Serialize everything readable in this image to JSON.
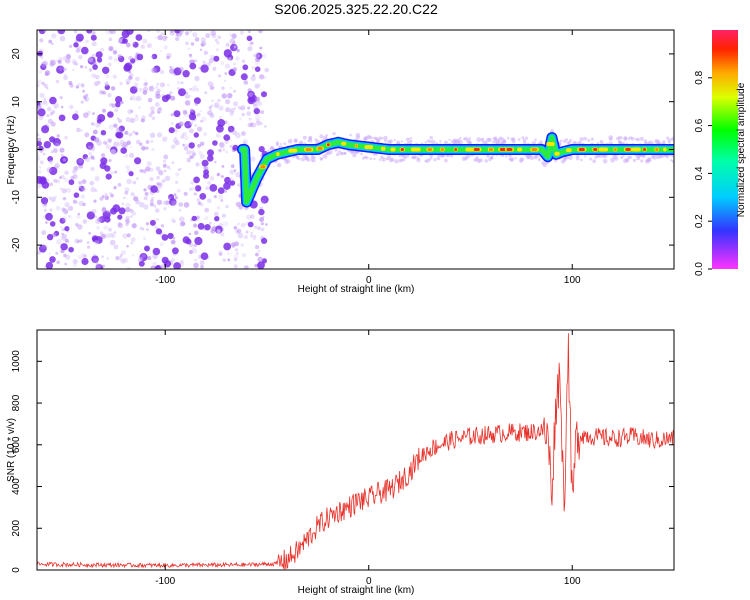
{
  "title": "S206.2025.325.22.20.C22",
  "colors": {
    "axis": "#000000",
    "snr_line": "#e8312a",
    "noise_dots": "#8a3cf0",
    "colormap": [
      "#ff0000",
      "#ff8800",
      "#ffff00",
      "#00ff00",
      "#00ffff",
      "#0000ff",
      "#ff00ff"
    ]
  },
  "chart_data": [
    {
      "type": "heatmap",
      "title": "S206.2025.325.22.20.C22",
      "xlabel": "Height of straight line (km)",
      "ylabel": "Frequency (Hz)",
      "xlim": [
        -163,
        150
      ],
      "ylim": [
        -25,
        25
      ],
      "xticks": [
        -100,
        0,
        100
      ],
      "yticks": [
        -20,
        -10,
        0,
        10,
        20
      ],
      "colorbar": {
        "label": "Normalized spectral amplitude",
        "range": [
          0,
          1
        ],
        "ticks": [
          "0.0",
          "0.2",
          "0.4",
          "0.6",
          "0.8"
        ],
        "tick_values": [
          0.0,
          0.2,
          0.4,
          0.6,
          0.8
        ]
      },
      "noise_region": {
        "x_range": [
          -163,
          -52
        ],
        "freq_range": [
          -25,
          25
        ],
        "amplitude": "low (purple)"
      },
      "ridge": {
        "x": [
          -60,
          -55,
          -50,
          -45,
          -40,
          -35,
          -30,
          -25,
          -20,
          -15,
          -10,
          0,
          10,
          20,
          30,
          40,
          50,
          60,
          70,
          80,
          85,
          88,
          90,
          92,
          95,
          100,
          110,
          120,
          130,
          140,
          150
        ],
        "freq": [
          -11,
          -6,
          -2,
          -1,
          -0.5,
          0,
          0,
          0,
          1,
          1.5,
          1,
          0.5,
          0,
          0,
          0,
          0,
          0,
          0,
          0,
          0,
          0,
          -1.5,
          2.5,
          -1,
          -0.5,
          0,
          0,
          0,
          0,
          0,
          0
        ]
      }
    },
    {
      "type": "line",
      "xlabel": "Height of straight line (km)",
      "ylabel": "SNR (10 * v/v)",
      "xlim": [
        -163,
        150
      ],
      "ylim": [
        0,
        1150
      ],
      "xticks": [
        -100,
        0,
        100
      ],
      "yticks": [
        0,
        200,
        400,
        600,
        800,
        1000
      ],
      "series": [
        {
          "name": "SNR",
          "x": [
            -163,
            -140,
            -100,
            -60,
            -45,
            -40,
            -35,
            -30,
            -25,
            -20,
            -15,
            -10,
            -5,
            0,
            5,
            10,
            15,
            20,
            25,
            30,
            40,
            50,
            60,
            70,
            80,
            85,
            88,
            90,
            92,
            94,
            96,
            98,
            100,
            102,
            104,
            110,
            120,
            130,
            140,
            150
          ],
          "y": [
            28,
            25,
            22,
            25,
            30,
            50,
            90,
            150,
            210,
            250,
            280,
            300,
            330,
            340,
            370,
            380,
            420,
            470,
            540,
            580,
            620,
            640,
            650,
            660,
            660,
            670,
            640,
            380,
            800,
            950,
            280,
            1100,
            300,
            640,
            650,
            640,
            630,
            640,
            620,
            630
          ]
        }
      ]
    }
  ]
}
